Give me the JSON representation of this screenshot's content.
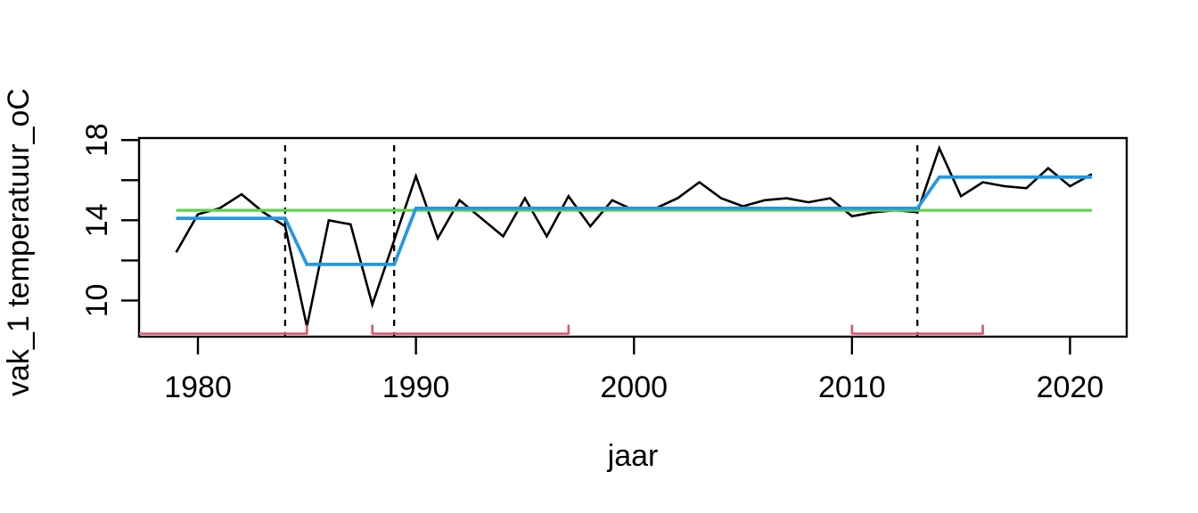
{
  "figure": {
    "background": "#ffffff",
    "foreground": "#000000"
  },
  "chart_data": {
    "type": "line",
    "title": "",
    "xlabel": "jaar",
    "ylabel": "vak_1 temperatuur_oC",
    "xlim": [
      1977.3,
      2022.6
    ],
    "ylim": [
      8.2,
      18.1
    ],
    "x_ticks": [
      1980,
      1990,
      2000,
      2010,
      2020
    ],
    "y_ticks": [
      10,
      12,
      14,
      16,
      18
    ],
    "y_tick_labels": [
      "10",
      "",
      "14",
      "",
      "18"
    ],
    "grid": false,
    "legend_position": "none",
    "series": [
      {
        "name": "observed-temperature",
        "color": "#000000",
        "width": 2.6,
        "x": [
          1979,
          1980,
          1981,
          1982,
          1983,
          1984,
          1985,
          1986,
          1987,
          1988,
          1989,
          1990,
          1991,
          1992,
          1993,
          1994,
          1995,
          1996,
          1997,
          1998,
          1999,
          2000,
          2001,
          2002,
          2003,
          2004,
          2005,
          2006,
          2007,
          2008,
          2009,
          2010,
          2011,
          2012,
          2013,
          2014,
          2015,
          2016,
          2017,
          2018,
          2019,
          2020,
          2021
        ],
        "values": [
          12.4,
          14.3,
          14.6,
          15.3,
          14.4,
          13.7,
          8.7,
          14.0,
          13.8,
          9.8,
          13.0,
          16.2,
          13.1,
          15.0,
          14.1,
          13.2,
          15.1,
          13.2,
          15.2,
          13.7,
          15.0,
          14.5,
          14.6,
          15.1,
          15.9,
          15.1,
          14.7,
          15.0,
          15.1,
          14.9,
          15.1,
          14.2,
          14.4,
          14.5,
          14.4,
          17.6,
          15.2,
          15.9,
          15.7,
          15.6,
          16.6,
          15.7,
          16.3
        ]
      },
      {
        "name": "overall-mean",
        "color": "#61D04F",
        "width": 3.2,
        "x": [
          1979,
          2021
        ],
        "values": [
          14.5,
          14.5
        ]
      },
      {
        "name": "changepoint-segment-means",
        "color": "#2297E6",
        "width": 3.7,
        "x": [
          1979,
          1984,
          1985,
          1989,
          1990,
          2013,
          2014,
          2021
        ],
        "values": [
          14.1,
          14.1,
          11.8,
          11.8,
          14.6,
          14.6,
          16.15,
          16.15
        ]
      }
    ],
    "changepoint_lines": {
      "years": [
        1984,
        1989,
        2013
      ],
      "color": "#000000",
      "style": "dashed"
    },
    "confidence_brackets": {
      "color": "#DF536B",
      "level_value": 8.35,
      "intervals": [
        {
          "from": 1977.3,
          "to": 1985,
          "left_tick": false,
          "right_tick": true
        },
        {
          "from": 1988,
          "to": 1997,
          "left_tick": true,
          "right_tick": true
        },
        {
          "from": 2010,
          "to": 2016,
          "left_tick": true,
          "right_tick": true
        }
      ]
    }
  }
}
